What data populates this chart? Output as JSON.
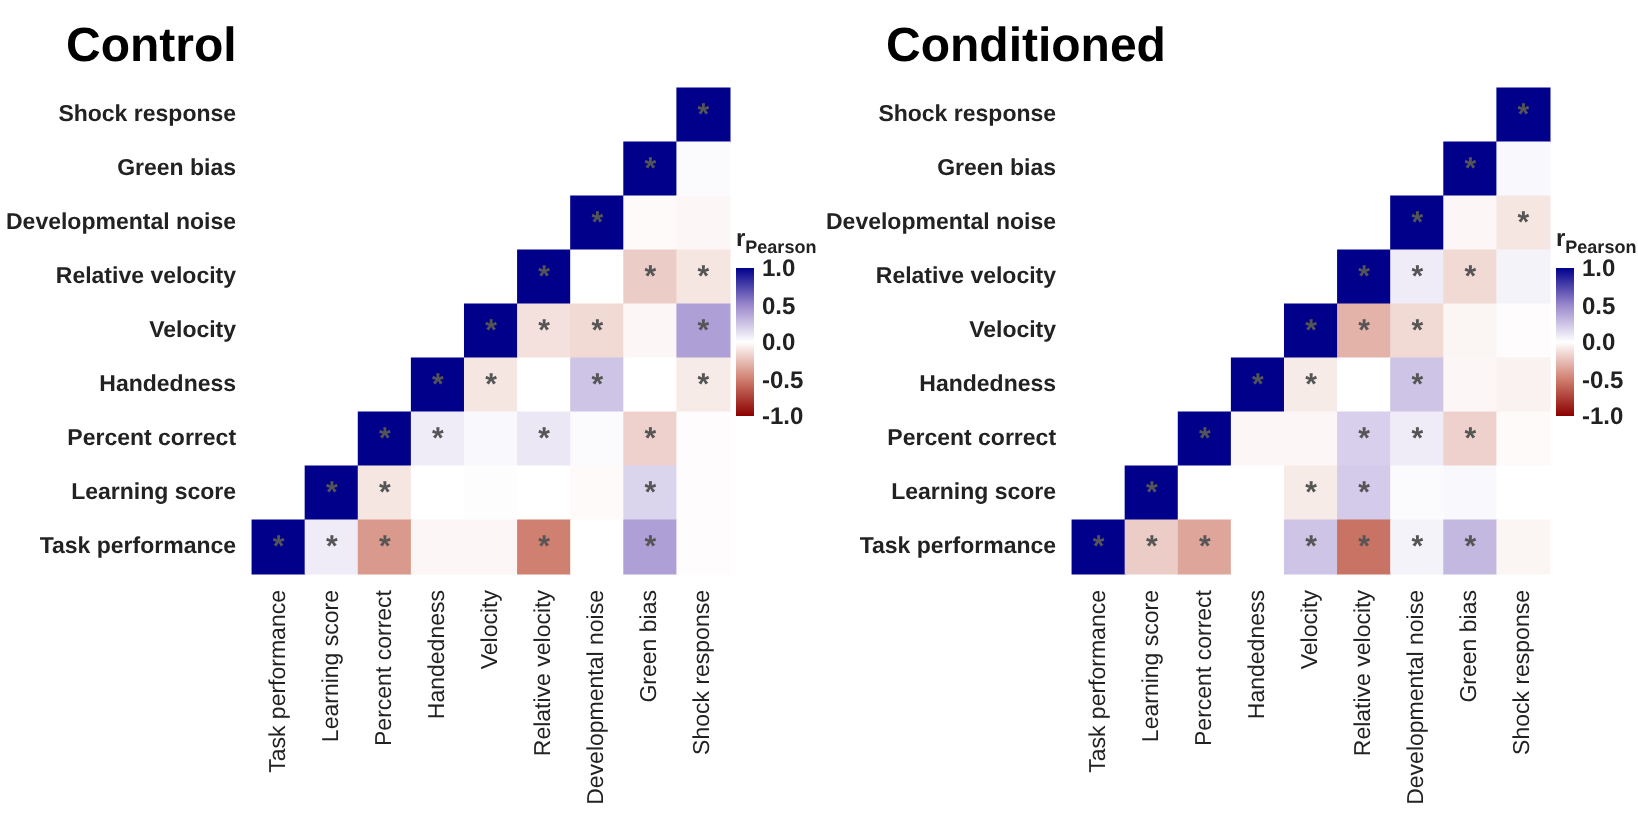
{
  "chart_data": [
    {
      "type": "heatmap",
      "title": "Control",
      "clabel": "r$_{Pearson}$",
      "clim": [
        -1,
        1
      ],
      "cticks": [
        {
          "value": 1,
          "label": "1.0"
        },
        {
          "value": 0.5,
          "label": "0.5"
        },
        {
          "value": 0,
          "label": "0.0"
        },
        {
          "value": -0.5,
          "label": "-0.5"
        },
        {
          "value": -1,
          "label": "-1.0"
        }
      ],
      "categories": [
        "Task performance",
        "Learning score",
        "Percent correct",
        "Handedness",
        "Velocity",
        "Relative velocity",
        "Developmental noise",
        "Green bias",
        "Shock response"
      ],
      "y_categories": [
        "Shock response",
        "Green bias",
        "Developmental noise",
        "Relative velocity",
        "Velocity",
        "Handedness",
        "Percent correct",
        "Learning score",
        "Task performance"
      ],
      "cells": [
        [
          null,
          null,
          null,
          null,
          null,
          null,
          null,
          null,
          1
        ],
        [
          null,
          null,
          null,
          null,
          null,
          null,
          null,
          1,
          0.02
        ],
        [
          null,
          null,
          null,
          null,
          null,
          null,
          1,
          -0.02,
          -0.03
        ],
        [
          null,
          null,
          null,
          null,
          null,
          1,
          0,
          -0.2,
          -0.1
        ],
        [
          null,
          null,
          null,
          null,
          1,
          -0.12,
          -0.15,
          -0.03,
          0.4
        ],
        [
          null,
          null,
          null,
          1,
          -0.1,
          0,
          0.25,
          0,
          -0.08
        ],
        [
          null,
          null,
          1,
          0.08,
          0.03,
          0.1,
          0.02,
          -0.18,
          -0.01
        ],
        [
          null,
          1,
          -0.1,
          0,
          0.01,
          0,
          -0.02,
          0.18,
          -0.01
        ],
        [
          1,
          0.08,
          -0.4,
          -0.03,
          -0.03,
          -0.5,
          0,
          0.4,
          -0.01
        ]
      ],
      "cell_labels": [
        [
          null,
          null,
          null,
          null,
          null,
          null,
          null,
          null,
          "*"
        ],
        [
          null,
          null,
          null,
          null,
          null,
          null,
          null,
          "*",
          null
        ],
        [
          null,
          null,
          null,
          null,
          null,
          null,
          "*",
          null,
          null
        ],
        [
          null,
          null,
          null,
          null,
          null,
          "*",
          null,
          "*",
          "*"
        ],
        [
          null,
          null,
          null,
          null,
          "*",
          "*",
          "*",
          null,
          "*"
        ],
        [
          null,
          null,
          null,
          "*",
          "*",
          null,
          "*",
          null,
          "*"
        ],
        [
          null,
          null,
          "*",
          "*",
          null,
          "*",
          null,
          "*",
          null
        ],
        [
          null,
          "*",
          "*",
          null,
          null,
          null,
          null,
          "*",
          null
        ],
        [
          "*",
          "*",
          "*",
          null,
          null,
          "*",
          null,
          "*",
          null
        ]
      ]
    },
    {
      "type": "heatmap",
      "title": "Conditioned",
      "clabel": "r$_{Pearson}$",
      "clim": [
        -1,
        1
      ],
      "cticks": [
        {
          "value": 1,
          "label": "1.0"
        },
        {
          "value": 0.5,
          "label": "0.5"
        },
        {
          "value": 0,
          "label": "0.0"
        },
        {
          "value": -0.5,
          "label": "-0.5"
        },
        {
          "value": -1,
          "label": "-1.0"
        }
      ],
      "categories": [
        "Task performance",
        "Learning score",
        "Percent correct",
        "Handedness",
        "Velocity",
        "Relative velocity",
        "Developmental noise",
        "Green bias",
        "Shock response"
      ],
      "y_categories": [
        "Shock response",
        "Green bias",
        "Developmental noise",
        "Relative velocity",
        "Velocity",
        "Handedness",
        "Percent correct",
        "Learning score",
        "Task performance"
      ],
      "cells": [
        [
          null,
          null,
          null,
          null,
          null,
          null,
          null,
          null,
          1
        ],
        [
          null,
          null,
          null,
          null,
          null,
          null,
          null,
          1,
          0.03
        ],
        [
          null,
          null,
          null,
          null,
          null,
          null,
          1,
          -0.03,
          -0.1
        ],
        [
          null,
          null,
          null,
          null,
          null,
          1,
          0.08,
          -0.15,
          0.05
        ],
        [
          null,
          null,
          null,
          null,
          1,
          -0.3,
          -0.15,
          -0.04,
          -0.01
        ],
        [
          null,
          null,
          null,
          1,
          -0.08,
          0,
          0.25,
          -0.03,
          -0.05
        ],
        [
          null,
          null,
          1,
          -0.03,
          -0.03,
          0.2,
          0.08,
          -0.18,
          -0.02
        ],
        [
          null,
          1,
          0,
          0,
          -0.08,
          0.22,
          0.02,
          0.03,
          0
        ],
        [
          1,
          -0.2,
          -0.35,
          0,
          0.25,
          -0.55,
          0.05,
          0.3,
          -0.04
        ]
      ],
      "cell_labels": [
        [
          null,
          null,
          null,
          null,
          null,
          null,
          null,
          null,
          "*"
        ],
        [
          null,
          null,
          null,
          null,
          null,
          null,
          null,
          "*",
          null
        ],
        [
          null,
          null,
          null,
          null,
          null,
          null,
          "*",
          null,
          "*"
        ],
        [
          null,
          null,
          null,
          null,
          null,
          "*",
          "*",
          "*",
          null
        ],
        [
          null,
          null,
          null,
          null,
          "*",
          "*",
          "*",
          null,
          null
        ],
        [
          null,
          null,
          null,
          "*",
          "*",
          null,
          "*",
          null,
          null
        ],
        [
          null,
          null,
          "*",
          null,
          null,
          "*",
          "*",
          "*",
          null
        ],
        [
          null,
          "*",
          null,
          null,
          "*",
          "*",
          null,
          null,
          null
        ],
        [
          "*",
          "*",
          "*",
          null,
          "*",
          "*",
          "*",
          "*",
          null
        ]
      ]
    }
  ]
}
